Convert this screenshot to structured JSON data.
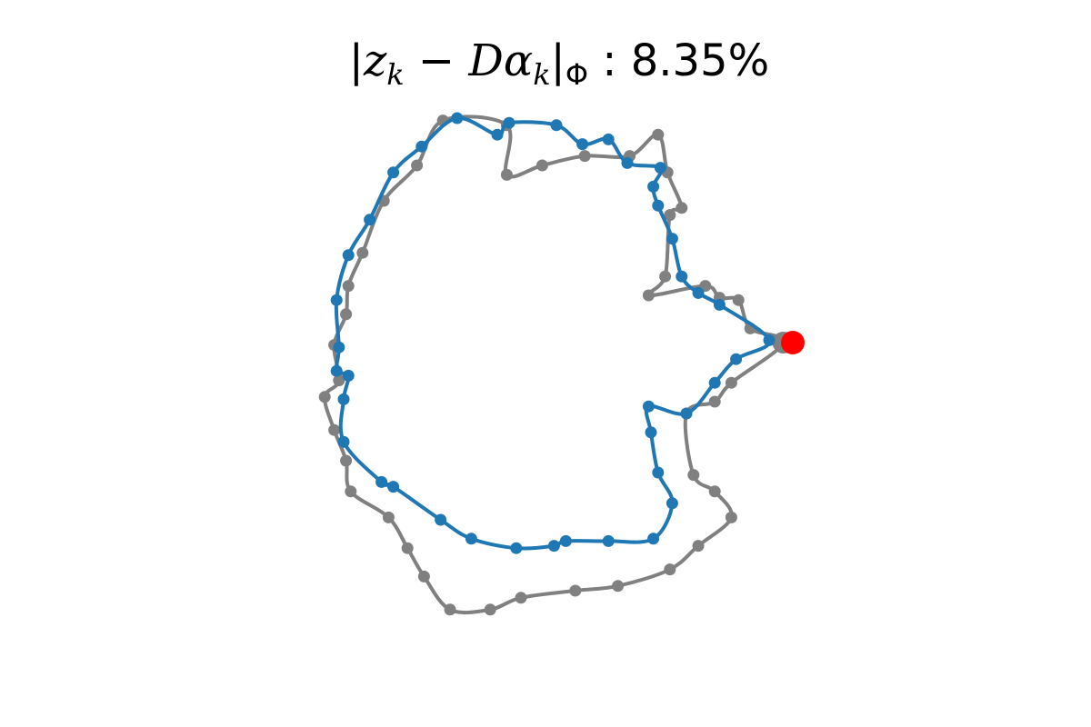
{
  "chart_data": {
    "type": "scatter",
    "title": "|z_k − Dα_k|_Φ : 8.35%",
    "title_parts": {
      "bar_open": "|",
      "z": "z",
      "sub_k1": "k",
      "minus": " − ",
      "D": "D",
      "alpha": "α",
      "sub_k2": "k",
      "bar_close": "|",
      "sub_phi": "Φ",
      "value": " : 8.35%"
    },
    "axes": "off",
    "grid": false,
    "xlim": [
      -1.45,
      1.45
    ],
    "ylim": [
      -1.25,
      1.05
    ],
    "colors": {
      "original": "#808080",
      "reconstruction": "#1f77b4",
      "start_marker": "#ff0000"
    },
    "series": [
      {
        "role": "original",
        "style": "line+points",
        "points": [
          [
            0.41,
            0.0
          ],
          [
            0.27,
            0.06
          ],
          [
            0.22,
            0.18
          ],
          [
            0.14,
            0.19
          ],
          [
            0.08,
            0.24
          ],
          [
            -0.16,
            0.2
          ],
          [
            -0.09,
            0.28
          ],
          [
            -0.07,
            0.54
          ],
          [
            -0.02,
            0.57
          ],
          [
            -0.08,
            0.72
          ],
          [
            -0.12,
            0.88
          ],
          [
            -0.24,
            0.79
          ],
          [
            -0.43,
            0.79
          ],
          [
            -0.61,
            0.75
          ],
          [
            -0.76,
            0.71
          ],
          [
            -0.76,
            0.92
          ],
          [
            -1.03,
            0.94
          ],
          [
            -1.14,
            0.75
          ],
          [
            -1.28,
            0.6
          ],
          [
            -1.37,
            0.38
          ],
          [
            -1.43,
            0.24
          ],
          [
            -1.44,
            0.12
          ],
          [
            -1.49,
            -0.01
          ],
          [
            -1.47,
            -0.16
          ],
          [
            -1.53,
            -0.23
          ],
          [
            -1.49,
            -0.37
          ],
          [
            -1.44,
            -0.5
          ],
          [
            -1.42,
            -0.63
          ],
          [
            -1.26,
            -0.74
          ],
          [
            -1.18,
            -0.87
          ],
          [
            -1.11,
            -0.99
          ],
          [
            -1.0,
            -1.13
          ],
          [
            -0.83,
            -1.13
          ],
          [
            -0.7,
            -1.08
          ],
          [
            -0.47,
            -1.05
          ],
          [
            -0.29,
            -1.03
          ],
          [
            -0.07,
            -0.96
          ],
          [
            0.05,
            -0.86
          ],
          [
            0.19,
            -0.74
          ],
          [
            0.12,
            -0.63
          ],
          [
            0.03,
            -0.56
          ],
          [
            0.0,
            -0.3
          ],
          [
            0.12,
            -0.25
          ],
          [
            0.19,
            -0.17
          ]
        ]
      },
      {
        "role": "reconstruction",
        "style": "line+points",
        "points": [
          [
            0.35,
            0.01
          ],
          [
            0.21,
            -0.07
          ],
          [
            0.12,
            -0.17
          ],
          [
            0.0,
            -0.3
          ],
          [
            -0.16,
            -0.27
          ],
          [
            -0.15,
            -0.38
          ],
          [
            -0.12,
            -0.55
          ],
          [
            -0.06,
            -0.68
          ],
          [
            -0.14,
            -0.83
          ],
          [
            -0.33,
            -0.84
          ],
          [
            -0.51,
            -0.84
          ],
          [
            -0.56,
            -0.86
          ],
          [
            -0.72,
            -0.87
          ],
          [
            -0.91,
            -0.83
          ],
          [
            -1.04,
            -0.75
          ],
          [
            -1.24,
            -0.61
          ],
          [
            -1.29,
            -0.59
          ],
          [
            -1.45,
            -0.42
          ],
          [
            -1.45,
            -0.24
          ],
          [
            -1.43,
            -0.14
          ],
          [
            -1.48,
            -0.12
          ],
          [
            -1.47,
            -0.02
          ],
          [
            -1.48,
            0.18
          ],
          [
            -1.43,
            0.37
          ],
          [
            -1.34,
            0.52
          ],
          [
            -1.24,
            0.72
          ],
          [
            -1.12,
            0.83
          ],
          [
            -0.97,
            0.95
          ],
          [
            -0.8,
            0.88
          ],
          [
            -0.75,
            0.93
          ],
          [
            -0.55,
            0.92
          ],
          [
            -0.44,
            0.84
          ],
          [
            -0.33,
            0.86
          ],
          [
            -0.25,
            0.76
          ],
          [
            -0.11,
            0.74
          ],
          [
            -0.14,
            0.66
          ],
          [
            -0.12,
            0.58
          ],
          [
            -0.06,
            0.44
          ],
          [
            -0.02,
            0.28
          ],
          [
            0.05,
            0.21
          ],
          [
            0.14,
            0.16
          ]
        ]
      },
      {
        "role": "start_marker",
        "style": "point",
        "points": [
          [
            0.45,
            0.0
          ]
        ]
      }
    ]
  }
}
